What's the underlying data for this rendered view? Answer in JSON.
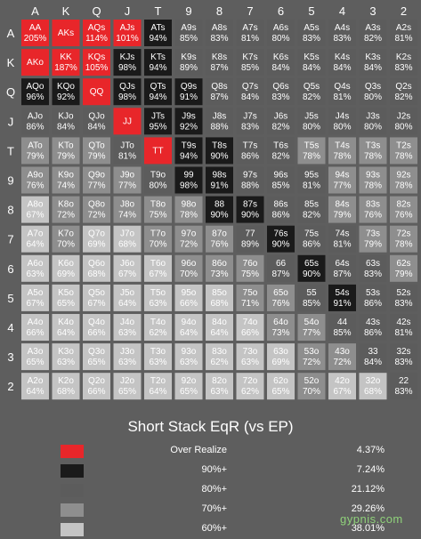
{
  "chart_data": {
    "type": "heatmap",
    "title": "Short Stack EqR (vs EP)",
    "column_labels": [
      "A",
      "K",
      "Q",
      "J",
      "T",
      "9",
      "8",
      "7",
      "6",
      "5",
      "4",
      "3",
      "2"
    ],
    "row_labels": [
      "A",
      "K",
      "Q",
      "J",
      "T",
      "9",
      "8",
      "7",
      "6",
      "5",
      "4",
      "3",
      "2"
    ],
    "cells": [
      [
        [
          "AA",
          "205%",
          "red"
        ],
        [
          "AKs",
          "",
          "red"
        ],
        [
          "AQs",
          "114%",
          "red"
        ],
        [
          "AJs",
          "101%",
          "red"
        ],
        [
          "ATs",
          "94%",
          "black"
        ],
        [
          "A9s",
          "85%",
          "dark"
        ],
        [
          "A8s",
          "83%",
          "dark"
        ],
        [
          "A7s",
          "81%",
          "dark"
        ],
        [
          "A6s",
          "80%",
          "dark"
        ],
        [
          "A5s",
          "83%",
          "dark"
        ],
        [
          "A4s",
          "83%",
          "dark"
        ],
        [
          "A3s",
          "82%",
          "dark"
        ],
        [
          "A2s",
          "81%",
          "dark"
        ]
      ],
      [
        [
          "AKo",
          "",
          "red"
        ],
        [
          "KK",
          "187%",
          "red"
        ],
        [
          "KQs",
          "105%",
          "red"
        ],
        [
          "KJs",
          "98%",
          "black"
        ],
        [
          "KTs",
          "94%",
          "black"
        ],
        [
          "K9s",
          "89%",
          "dark"
        ],
        [
          "K8s",
          "87%",
          "dark"
        ],
        [
          "K7s",
          "85%",
          "dark"
        ],
        [
          "K6s",
          "84%",
          "dark"
        ],
        [
          "K5s",
          "84%",
          "dark"
        ],
        [
          "K4s",
          "84%",
          "dark"
        ],
        [
          "K3s",
          "84%",
          "dark"
        ],
        [
          "K2s",
          "83%",
          "dark"
        ]
      ],
      [
        [
          "AQo",
          "96%",
          "black"
        ],
        [
          "KQo",
          "92%",
          "black"
        ],
        [
          "QQ",
          "",
          "red"
        ],
        [
          "QJs",
          "98%",
          "black"
        ],
        [
          "QTs",
          "94%",
          "black"
        ],
        [
          "Q9s",
          "91%",
          "black"
        ],
        [
          "Q8s",
          "87%",
          "dark"
        ],
        [
          "Q7s",
          "84%",
          "dark"
        ],
        [
          "Q6s",
          "83%",
          "dark"
        ],
        [
          "Q5s",
          "82%",
          "dark"
        ],
        [
          "Q4s",
          "81%",
          "dark"
        ],
        [
          "Q3s",
          "80%",
          "dark"
        ],
        [
          "Q2s",
          "82%",
          "dark"
        ]
      ],
      [
        [
          "AJo",
          "86%",
          "dark"
        ],
        [
          "KJo",
          "84%",
          "dark"
        ],
        [
          "QJo",
          "84%",
          "dark"
        ],
        [
          "JJ",
          "",
          "red"
        ],
        [
          "JTs",
          "95%",
          "black"
        ],
        [
          "J9s",
          "92%",
          "black"
        ],
        [
          "J8s",
          "88%",
          "dark"
        ],
        [
          "J7s",
          "83%",
          "dark"
        ],
        [
          "J6s",
          "82%",
          "dark"
        ],
        [
          "J5s",
          "80%",
          "dark"
        ],
        [
          "J4s",
          "80%",
          "dark"
        ],
        [
          "J3s",
          "80%",
          "dark"
        ],
        [
          "J2s",
          "80%",
          "dark"
        ]
      ],
      [
        [
          "ATo",
          "79%",
          "mid"
        ],
        [
          "KTo",
          "79%",
          "mid"
        ],
        [
          "QTo",
          "79%",
          "mid"
        ],
        [
          "JTo",
          "81%",
          "dark"
        ],
        [
          "TT",
          "",
          "red"
        ],
        [
          "T9s",
          "94%",
          "black"
        ],
        [
          "T8s",
          "90%",
          "black"
        ],
        [
          "T7s",
          "86%",
          "dark"
        ],
        [
          "T6s",
          "82%",
          "dark"
        ],
        [
          "T5s",
          "78%",
          "mid"
        ],
        [
          "T4s",
          "78%",
          "mid"
        ],
        [
          "T3s",
          "78%",
          "mid"
        ],
        [
          "T2s",
          "78%",
          "mid"
        ]
      ],
      [
        [
          "A9o",
          "76%",
          "mid"
        ],
        [
          "K9o",
          "74%",
          "mid"
        ],
        [
          "Q9o",
          "77%",
          "mid"
        ],
        [
          "J9o",
          "77%",
          "mid"
        ],
        [
          "T9o",
          "80%",
          "dark"
        ],
        [
          "99",
          "98%",
          "black"
        ],
        [
          "98s",
          "91%",
          "black"
        ],
        [
          "97s",
          "88%",
          "dark"
        ],
        [
          "96s",
          "85%",
          "dark"
        ],
        [
          "95s",
          "81%",
          "dark"
        ],
        [
          "94s",
          "77%",
          "mid"
        ],
        [
          "93s",
          "78%",
          "mid"
        ],
        [
          "92s",
          "78%",
          "mid"
        ]
      ],
      [
        [
          "A8o",
          "67%",
          "light"
        ],
        [
          "K8o",
          "72%",
          "mid"
        ],
        [
          "Q8o",
          "72%",
          "mid"
        ],
        [
          "J8o",
          "74%",
          "mid"
        ],
        [
          "T8o",
          "75%",
          "mid"
        ],
        [
          "98o",
          "78%",
          "mid"
        ],
        [
          "88",
          "90%",
          "black"
        ],
        [
          "87s",
          "90%",
          "black"
        ],
        [
          "86s",
          "86%",
          "dark"
        ],
        [
          "85s",
          "82%",
          "dark"
        ],
        [
          "84s",
          "79%",
          "mid"
        ],
        [
          "83s",
          "76%",
          "mid"
        ],
        [
          "82s",
          "76%",
          "mid"
        ]
      ],
      [
        [
          "A7o",
          "64%",
          "light"
        ],
        [
          "K7o",
          "70%",
          "mid"
        ],
        [
          "Q7o",
          "69%",
          "light"
        ],
        [
          "J7o",
          "68%",
          "light"
        ],
        [
          "T7o",
          "70%",
          "mid"
        ],
        [
          "97o",
          "72%",
          "mid"
        ],
        [
          "87o",
          "76%",
          "mid"
        ],
        [
          "77",
          "89%",
          "dark"
        ],
        [
          "76s",
          "90%",
          "black"
        ],
        [
          "75s",
          "86%",
          "dark"
        ],
        [
          "74s",
          "81%",
          "dark"
        ],
        [
          "73s",
          "79%",
          "mid"
        ],
        [
          "72s",
          "78%",
          "mid"
        ]
      ],
      [
        [
          "A6o",
          "63%",
          "light"
        ],
        [
          "K6o",
          "69%",
          "light"
        ],
        [
          "Q6o",
          "68%",
          "light"
        ],
        [
          "J6o",
          "67%",
          "light"
        ],
        [
          "T6o",
          "67%",
          "light"
        ],
        [
          "96o",
          "70%",
          "mid"
        ],
        [
          "86o",
          "73%",
          "mid"
        ],
        [
          "76o",
          "75%",
          "mid"
        ],
        [
          "66",
          "87%",
          "dark"
        ],
        [
          "65s",
          "90%",
          "black"
        ],
        [
          "64s",
          "87%",
          "dark"
        ],
        [
          "63s",
          "83%",
          "dark"
        ],
        [
          "62s",
          "79%",
          "mid"
        ]
      ],
      [
        [
          "A5o",
          "67%",
          "light"
        ],
        [
          "K5o",
          "65%",
          "light"
        ],
        [
          "Q5o",
          "67%",
          "light"
        ],
        [
          "J5o",
          "64%",
          "light"
        ],
        [
          "T5o",
          "63%",
          "light"
        ],
        [
          "95o",
          "66%",
          "light"
        ],
        [
          "85o",
          "68%",
          "light"
        ],
        [
          "75o",
          "71%",
          "mid"
        ],
        [
          "65o",
          "76%",
          "mid"
        ],
        [
          "55",
          "85%",
          "dark"
        ],
        [
          "54s",
          "91%",
          "black"
        ],
        [
          "53s",
          "86%",
          "dark"
        ],
        [
          "52s",
          "83%",
          "dark"
        ]
      ],
      [
        [
          "A4o",
          "66%",
          "light"
        ],
        [
          "K4o",
          "64%",
          "light"
        ],
        [
          "Q4o",
          "66%",
          "light"
        ],
        [
          "J4o",
          "63%",
          "light"
        ],
        [
          "T4o",
          "62%",
          "light"
        ],
        [
          "94o",
          "64%",
          "light"
        ],
        [
          "84o",
          "64%",
          "light"
        ],
        [
          "74o",
          "66%",
          "light"
        ],
        [
          "64o",
          "73%",
          "mid"
        ],
        [
          "54o",
          "77%",
          "mid"
        ],
        [
          "44",
          "85%",
          "dark"
        ],
        [
          "43s",
          "86%",
          "dark"
        ],
        [
          "42s",
          "81%",
          "dark"
        ]
      ],
      [
        [
          "A3o",
          "65%",
          "light"
        ],
        [
          "K3o",
          "63%",
          "light"
        ],
        [
          "Q3o",
          "65%",
          "light"
        ],
        [
          "J3o",
          "63%",
          "light"
        ],
        [
          "T3o",
          "63%",
          "light"
        ],
        [
          "93o",
          "63%",
          "light"
        ],
        [
          "83o",
          "62%",
          "light"
        ],
        [
          "73o",
          "63%",
          "light"
        ],
        [
          "63o",
          "69%",
          "light"
        ],
        [
          "53o",
          "72%",
          "mid"
        ],
        [
          "43o",
          "72%",
          "mid"
        ],
        [
          "33",
          "84%",
          "dark"
        ],
        [
          "32s",
          "83%",
          "dark"
        ]
      ],
      [
        [
          "A2o",
          "64%",
          "light"
        ],
        [
          "K2o",
          "68%",
          "light"
        ],
        [
          "Q2o",
          "66%",
          "light"
        ],
        [
          "J2o",
          "65%",
          "light"
        ],
        [
          "T2o",
          "64%",
          "light"
        ],
        [
          "92o",
          "65%",
          "light"
        ],
        [
          "82o",
          "63%",
          "light"
        ],
        [
          "72o",
          "62%",
          "light"
        ],
        [
          "62o",
          "65%",
          "light"
        ],
        [
          "52o",
          "70%",
          "mid"
        ],
        [
          "42o",
          "67%",
          "light"
        ],
        [
          "32o",
          "68%",
          "light"
        ],
        [
          "22",
          "83%",
          "dark"
        ]
      ]
    ],
    "legend": [
      {
        "key": "red",
        "label": "Over Realize",
        "percent": "4.37%"
      },
      {
        "key": "black",
        "label": "90%+",
        "percent": "7.24%"
      },
      {
        "key": "dark",
        "label": "80%+",
        "percent": "21.12%"
      },
      {
        "key": "mid",
        "label": "70%+",
        "percent": "29.26%"
      },
      {
        "key": "light",
        "label": "60%+",
        "percent": "38.01%"
      }
    ]
  },
  "colors": {
    "red": "#e8262a",
    "black": "#1a1a1a",
    "dark": "#5c5c5c",
    "mid": "#8e8e8e",
    "light": "#c4c4c4",
    "background": "#5e5e5e"
  },
  "watermark": "gypnis.com"
}
